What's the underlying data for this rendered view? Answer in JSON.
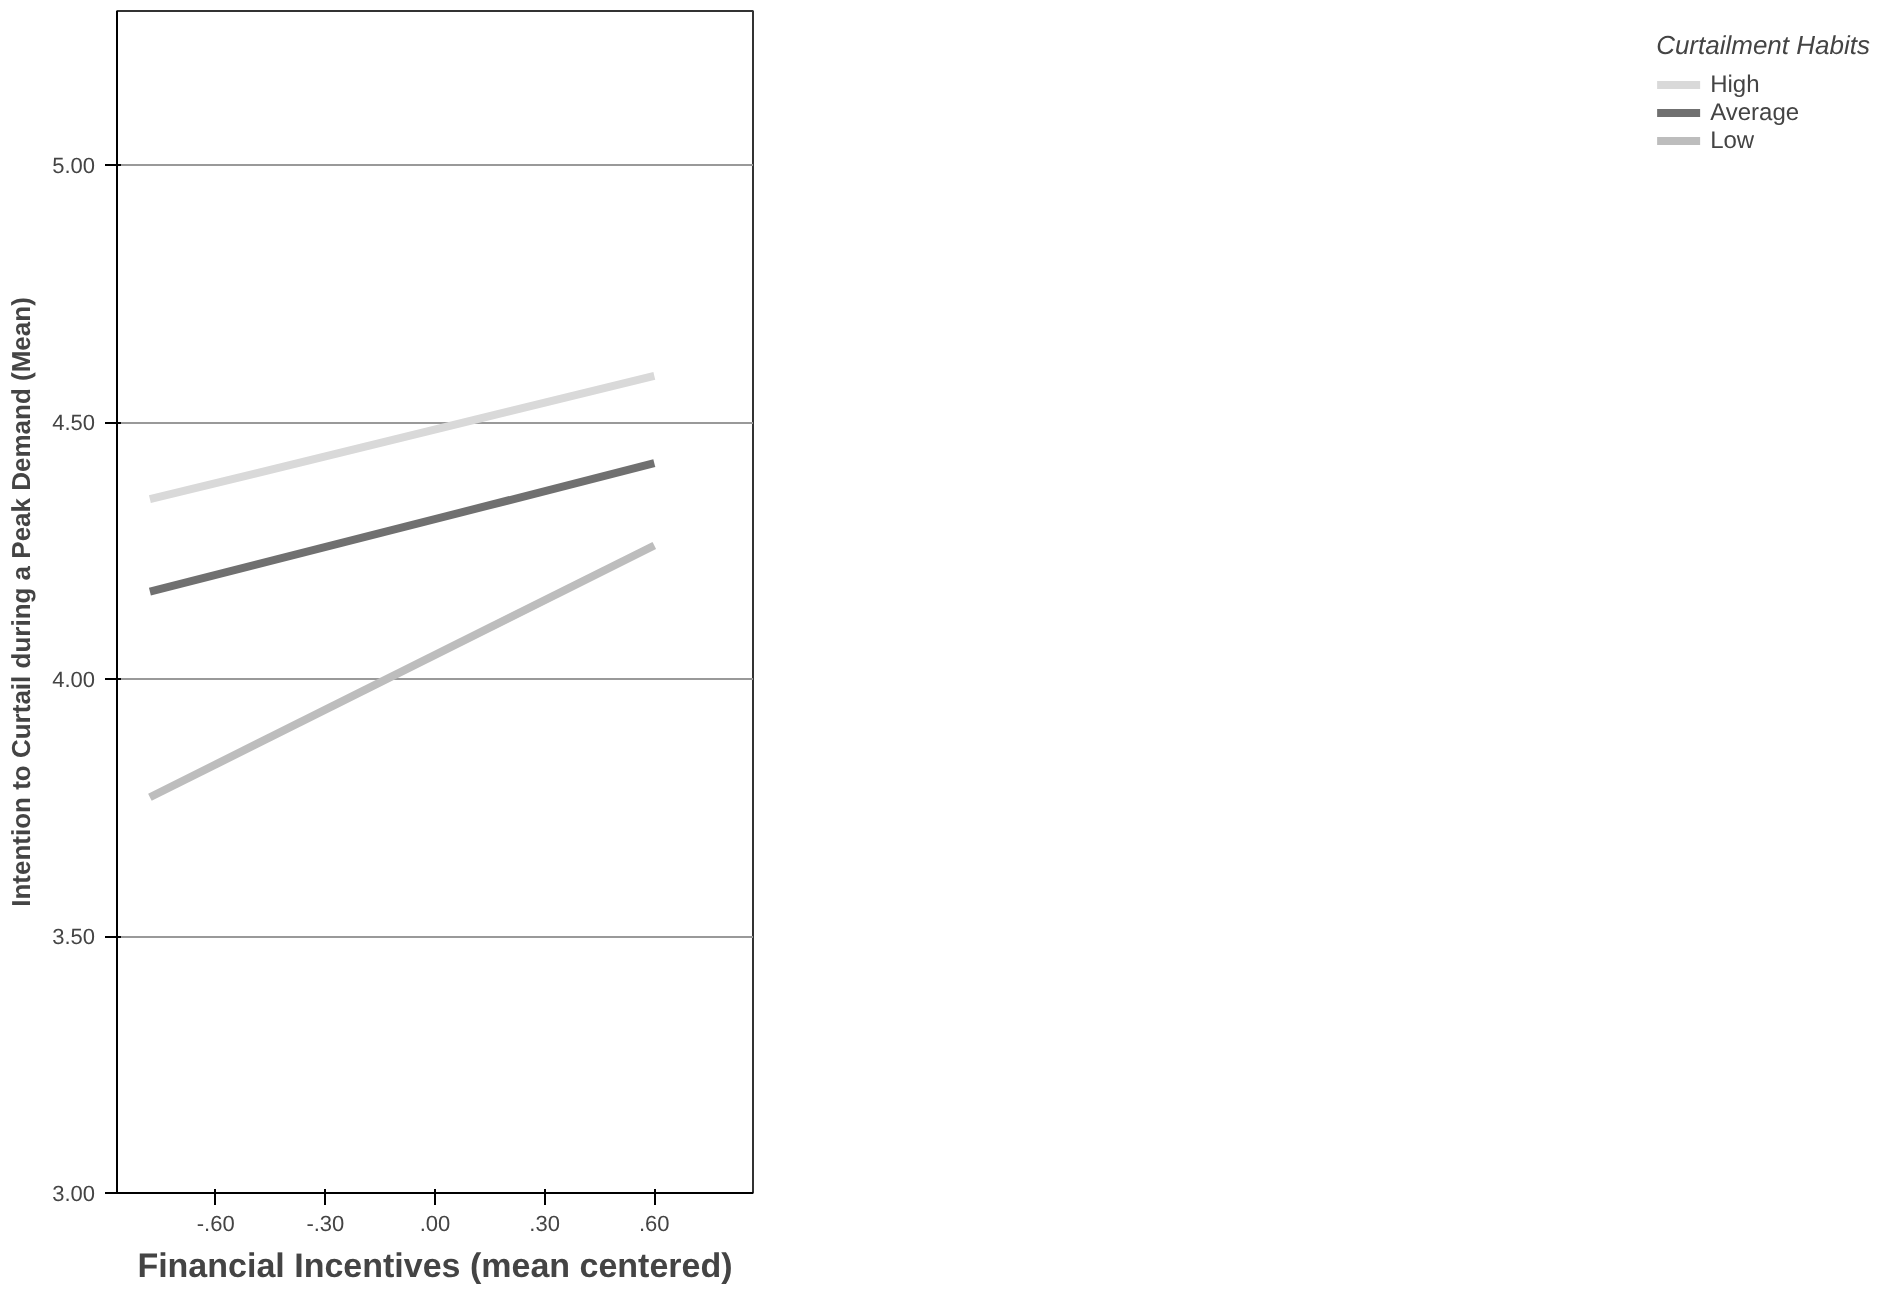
{
  "chart_data": {
    "type": "line",
    "xlabel": "Financial Incentives (mean centered)",
    "ylabel": "Intention to Curtail during a Peak Demand (Mean)",
    "legend_title": "Curtailment Habits",
    "x": [
      -0.78,
      0.6
    ],
    "series": [
      {
        "name": "High",
        "color": "#d9d9d9",
        "values": [
          4.35,
          4.59
        ]
      },
      {
        "name": "Average",
        "color": "#707070",
        "values": [
          4.17,
          4.42
        ]
      },
      {
        "name": "Low",
        "color": "#bdbdbd",
        "values": [
          3.77,
          4.26
        ]
      }
    ],
    "xlim": [
      -0.87,
      0.87
    ],
    "ylim": [
      3.0,
      5.3
    ],
    "xticks": [
      {
        "value": -0.6,
        "label": "-.60"
      },
      {
        "value": -0.3,
        "label": "-.30"
      },
      {
        "value": 0,
        "label": ".00"
      },
      {
        "value": 0.3,
        "label": ".30"
      },
      {
        "value": 0.6,
        "label": ".60"
      }
    ],
    "yticks": [
      {
        "value": 3.0,
        "label": "3.00"
      },
      {
        "value": 3.5,
        "label": "3.50"
      },
      {
        "value": 4.0,
        "label": "4.00"
      },
      {
        "value": 4.5,
        "label": "4.50"
      },
      {
        "value": 5.0,
        "label": "5.00"
      }
    ],
    "grid": "y",
    "legend": "top right",
    "marker": "none",
    "line_style": "solid"
  }
}
